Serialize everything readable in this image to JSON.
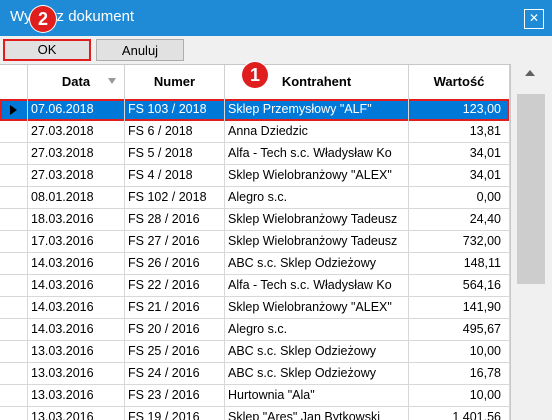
{
  "window": {
    "title": "Wybierz dokument",
    "close_label": "✕"
  },
  "markers": {
    "one": "1",
    "two": "2"
  },
  "toolbar": {
    "ok_label": "OK",
    "cancel_label": "Anuluj"
  },
  "table": {
    "columns": [
      "Data",
      "Numer",
      "Kontrahent",
      "Wartość"
    ],
    "rows": [
      {
        "date": "07.06.2018",
        "number": "FS 103 / 2018",
        "contractor": "Sklep Przemysłowy \"ALF\"",
        "value": "123,00",
        "selected": true
      },
      {
        "date": "27.03.2018",
        "number": "FS 6 / 2018",
        "contractor": "Anna Dziedzic",
        "value": "13,81"
      },
      {
        "date": "27.03.2018",
        "number": "FS 5 / 2018",
        "contractor": "Alfa - Tech s.c. Władysław Ko",
        "value": "34,01"
      },
      {
        "date": "27.03.2018",
        "number": "FS 4 / 2018",
        "contractor": "Sklep Wielobranżowy  \"ALEX\"",
        "value": "34,01"
      },
      {
        "date": "08.01.2018",
        "number": "FS 102 / 2018",
        "contractor": "Alegro s.c.",
        "value": "0,00"
      },
      {
        "date": "18.03.2016",
        "number": "FS 28 / 2016",
        "contractor": "Sklep Wielobranżowy Tadeusz",
        "value": "24,40"
      },
      {
        "date": "17.03.2016",
        "number": "FS 27 / 2016",
        "contractor": "Sklep Wielobranżowy Tadeusz",
        "value": "732,00"
      },
      {
        "date": "14.03.2016",
        "number": "FS 26 / 2016",
        "contractor": "ABC s.c. Sklep Odzieżowy",
        "value": "148,11"
      },
      {
        "date": "14.03.2016",
        "number": "FS 22 / 2016",
        "contractor": "Alfa - Tech s.c. Władysław Ko",
        "value": "564,16"
      },
      {
        "date": "14.03.2016",
        "number": "FS 21 / 2016",
        "contractor": "Sklep Wielobranżowy  \"ALEX\"",
        "value": "141,90"
      },
      {
        "date": "14.03.2016",
        "number": "FS 20 / 2016",
        "contractor": "Alegro s.c.",
        "value": "495,67"
      },
      {
        "date": "13.03.2016",
        "number": "FS 25 / 2016",
        "contractor": "ABC s.c. Sklep Odzieżowy",
        "value": "10,00"
      },
      {
        "date": "13.03.2016",
        "number": "FS 24 / 2016",
        "contractor": "ABC s.c. Sklep Odzieżowy",
        "value": "16,78"
      },
      {
        "date": "13.03.2016",
        "number": "FS 23 / 2016",
        "contractor": "Hurtownia \"Ala\"",
        "value": "10,00"
      },
      {
        "date": "13.03.2016",
        "number": "FS 19 / 2016",
        "contractor": "Sklep \"Ares\" Jan Bytkowski",
        "value": "1 401,56"
      }
    ]
  },
  "colors": {
    "titlebar": "#1f8bd6",
    "selection": "#0078d7",
    "highlight": "#e11d1d"
  }
}
